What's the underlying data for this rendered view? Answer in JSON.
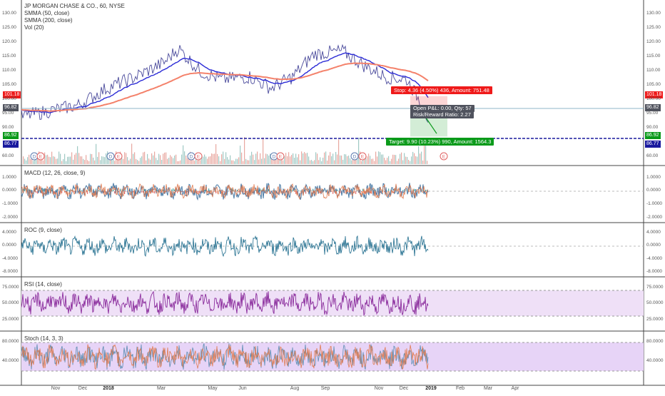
{
  "header": {
    "symbol": "JP MORGAN CHASE & CO., 60, NYSE",
    "indicators": [
      "SMMA (50, close)",
      "SMMA (200, close)",
      "Vol (20)"
    ]
  },
  "price_axis": {
    "ticks": [
      "130.00",
      "125.00",
      "120.00",
      "115.00",
      "110.00",
      "105.00",
      "100.00",
      "95.00",
      "90.00",
      "60.00"
    ],
    "tags": {
      "stop": "101.18",
      "last": "96.82",
      "target_top": "86.92",
      "target_bottom": "86.77"
    }
  },
  "position_tool": {
    "stop_label": "Stop: 4.36 (4.50%) 436, Amount: 751.48",
    "open_label": "Open P&L: 0.00, Qty: 57",
    "ratio_label": "Risk/Reward Ratio: 2.27",
    "target_label": "Target: 9.90 (10.23%) 990, Amount: 1564.3"
  },
  "panes": {
    "macd": {
      "title": "MACD (12, 26, close, 9)",
      "ticks": [
        "1.0000",
        "0.0000",
        "-1.0000",
        "-2.0000"
      ]
    },
    "roc": {
      "title": "ROC (9, close)",
      "ticks": [
        "4.0000",
        "0.0000",
        "-4.0000",
        "-8.0000"
      ]
    },
    "rsi": {
      "title": "RSI (14, close)",
      "ticks": [
        "75.0000",
        "50.0000",
        "25.0000"
      ]
    },
    "stoch": {
      "title": "Stoch (14, 3, 3)",
      "ticks": [
        "80.0000",
        "40.0000"
      ]
    }
  },
  "time_axis": [
    "Nov",
    "Dec",
    "2018",
    "Mar",
    "May",
    "Jun",
    "Aug",
    "Sep",
    "Nov",
    "Dec",
    "2019",
    "Feb",
    "Mar",
    "Apr"
  ],
  "event_markers": {
    "dividend": "D",
    "earnings": "E"
  },
  "colors": {
    "price_line": "#3a3aff",
    "smma50": "#2b2bd6",
    "smma200": "#f4826b",
    "stop": "#ef1a1a",
    "target": "#0a9a1a",
    "dashed_line": "#1a1a9e",
    "macd": "#4a7ba6",
    "signal": "#e07b50",
    "roc": "#1d6b8c",
    "rsi": "#8a2b9c",
    "rsi_band": "#efe0f7",
    "stoch_k": "#5a8cb0",
    "stoch_d": "#e07b50",
    "stoch_band": "#e7d4f7",
    "tag_dark": "#50535e"
  }
}
